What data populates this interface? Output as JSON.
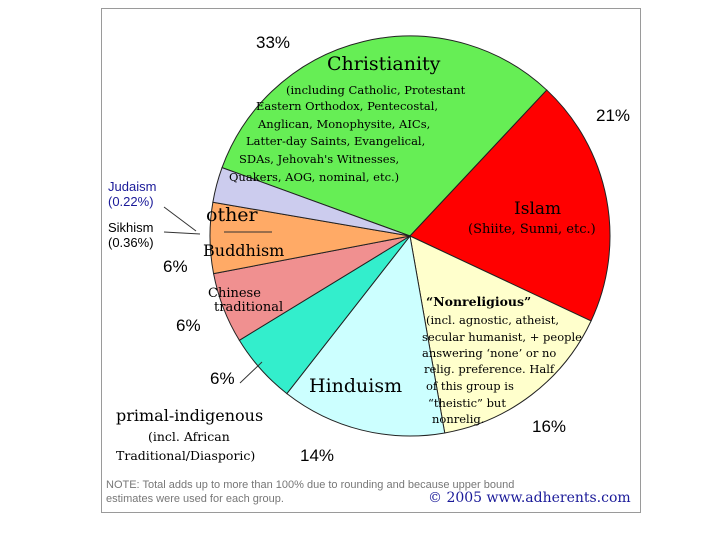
{
  "chart_data": {
    "type": "pie",
    "title": "",
    "colors": {
      "Christianity": "#66ee55",
      "Islam": "#ff0000",
      "Nonreligious": "#ffffcc",
      "Hinduism": "#ccffff",
      "primal-indigenous": "#33eecc",
      "Chinese traditional": "#f09090",
      "Buddhism": "#ffaa66",
      "other": "#ccccee"
    },
    "slices": [
      {
        "label": "Christianity",
        "value": 33,
        "pct_label": "33%",
        "sublabel": [
          "(including Catholic, Protestant",
          "Eastern Orthodox, Pentecostal,",
          "Anglican, Monophysite, AICs,",
          "Latter-day Saints, Evangelical,",
          "SDAs, Jehovah's Witnesses,",
          "Quakers, AOG, nominal, etc.)"
        ]
      },
      {
        "label": "Islam",
        "value": 21,
        "pct_label": "21%",
        "sublabel": [
          "(Shiite, Sunni, etc.)"
        ]
      },
      {
        "label": "“Nonreligious”",
        "value": 16,
        "pct_label": "16%",
        "sublabel": [
          "(incl. agnostic, atheist,",
          "secular humanist, + people",
          "answering ‘none’ or no",
          "relig. preference. Half",
          "of this group is",
          "“theistic” but",
          "nonrelig."
        ]
      },
      {
        "label": "Hinduism",
        "value": 14,
        "pct_label": "14%",
        "sublabel": []
      },
      {
        "label": "primal-indigenous",
        "value": 6,
        "pct_label": "6%",
        "sublabel": [
          "(incl. African",
          "Traditional/Diasporic)"
        ]
      },
      {
        "label": "Chinese traditional",
        "value": 6,
        "pct_label": "6%",
        "sublabel": []
      },
      {
        "label": "Buddhism",
        "value": 6,
        "pct_label": "6%",
        "sublabel": []
      },
      {
        "label": "other",
        "value": 3,
        "pct_label": "",
        "sublabel": []
      }
    ],
    "small_labels": [
      {
        "name": "Judaism",
        "value": "(0.22%)"
      },
      {
        "name": "Sikhism",
        "value": "(0.36%)"
      }
    ]
  },
  "labels": {
    "christianity": "Christianity",
    "islam": "Islam",
    "nonreligious": "“Nonreligious”",
    "hinduism": "Hinduism",
    "primal": "primal-indigenous",
    "chinese_1": "Chinese",
    "chinese_2": "traditional",
    "buddhism": "Buddhism",
    "other": "other",
    "judaism": "Judaism",
    "judaism_pct": "(0.22%)",
    "sikhism": "Sikhism",
    "sikhism_pct": "(0.36%)"
  },
  "note": {
    "line1": "NOTE: Total adds up to more than 100% due to rounding and because upper bound",
    "line2": "estimates were used for each group.",
    "credit": "© 2005 www.adherents.com"
  }
}
